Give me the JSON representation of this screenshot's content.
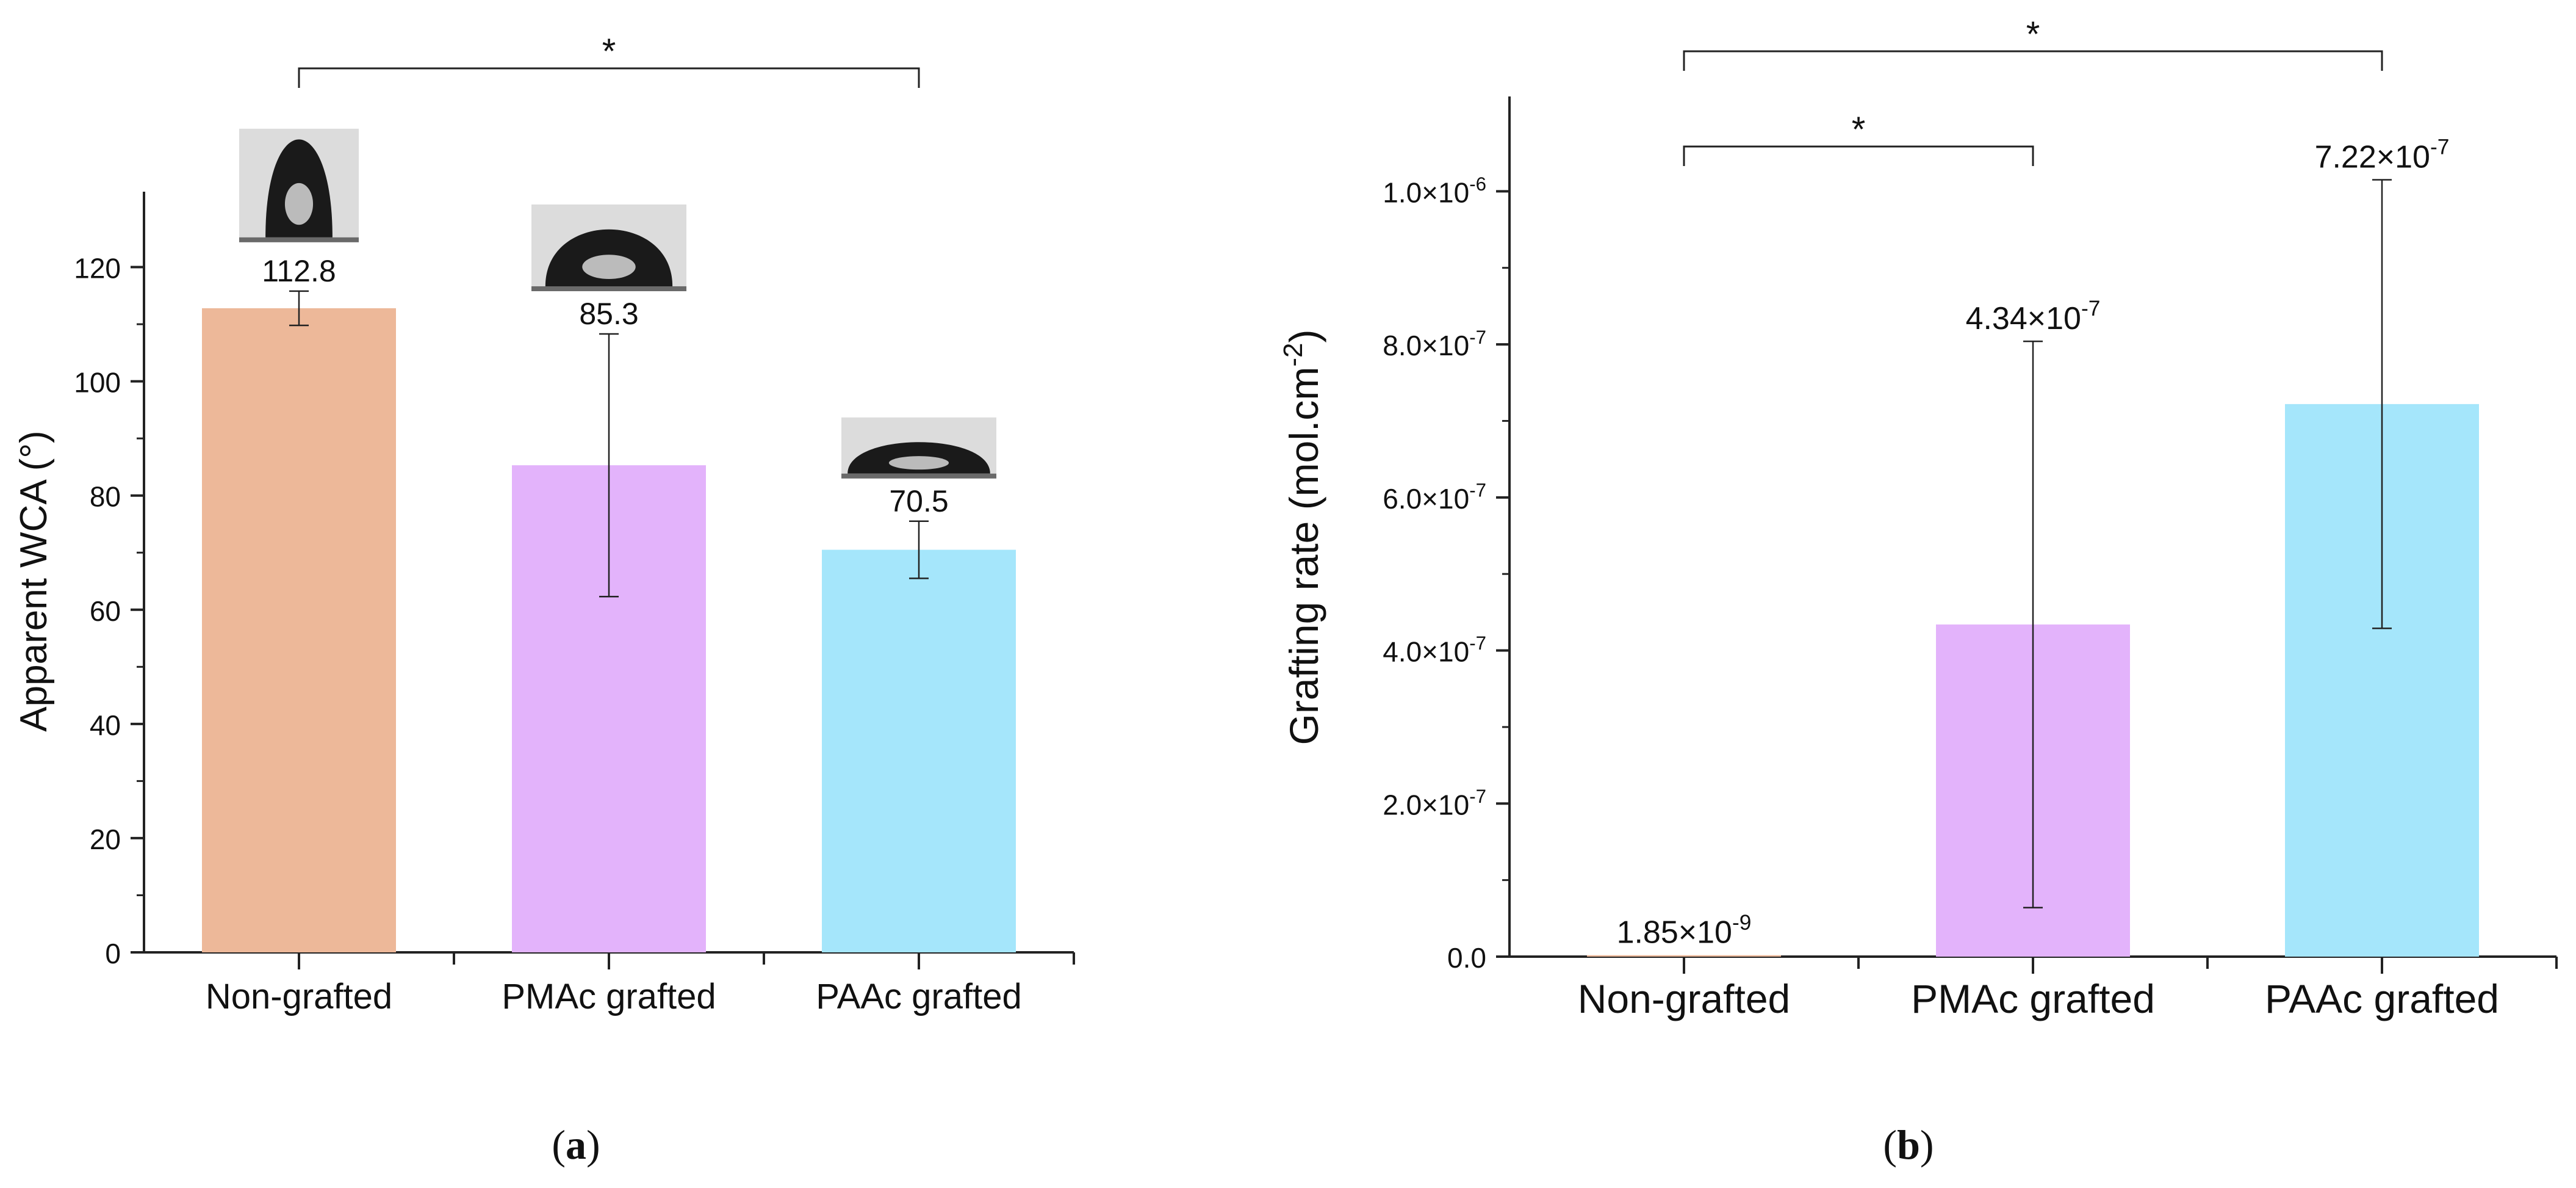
{
  "colors": {
    "non_grafted": "#EDB899",
    "pmac_grafted": "#E3B3FB",
    "paac_grafted": "#A5E6FB",
    "axis": "#222222",
    "droplet_bg": "#dcdcdc",
    "droplet": "#1a1a1a"
  },
  "chart_data": [
    {
      "type": "bar",
      "panel_label": "a",
      "categories": [
        "Non-grafted",
        "PMAc grafted",
        "PAAc grafted"
      ],
      "values": [
        112.8,
        85.3,
        70.5
      ],
      "error": [
        3,
        23,
        5
      ],
      "data_labels": [
        "112.8",
        "85.3",
        "70.5"
      ],
      "ylabel": "Apparent WCA (°)",
      "ylim": [
        0,
        130
      ],
      "yticks": [
        0,
        20,
        40,
        60,
        80,
        100,
        120
      ],
      "ytick_labels": [
        "0",
        "20",
        "40",
        "60",
        "80",
        "100",
        "120"
      ],
      "significance": [
        {
          "from": 0,
          "to": 2,
          "label": "*"
        }
      ],
      "droplet_images": [
        {
          "category": "Non-grafted",
          "icon": "droplet-image"
        },
        {
          "category": "PMAc grafted",
          "icon": "droplet-image"
        },
        {
          "category": "PAAc grafted",
          "icon": "droplet-image"
        }
      ]
    },
    {
      "type": "bar",
      "panel_label": "b",
      "categories": [
        "Non-grafted",
        "PMAc grafted",
        "PAAc grafted"
      ],
      "values": [
        1.85e-09,
        4.34e-07,
        7.22e-07
      ],
      "error": [
        0,
        3.7e-07,
        2.93e-07
      ],
      "data_labels": [
        {
          "mantissa": "1.85×10",
          "exp": "-9"
        },
        {
          "mantissa": "4.34×10",
          "exp": "-7"
        },
        {
          "mantissa": "7.22×10",
          "exp": "-7"
        }
      ],
      "ylabel": {
        "text": "Grafting rate (mol.cm",
        "sup": "-2",
        "tail": ")"
      },
      "ylim": [
        0,
        1.1e-06
      ],
      "yticks": [
        0,
        2e-07,
        4e-07,
        6e-07,
        8e-07,
        1e-06
      ],
      "ytick_labels": [
        {
          "mantissa": "0.0",
          "exp": ""
        },
        {
          "mantissa": "2.0×10",
          "exp": "-7"
        },
        {
          "mantissa": "4.0×10",
          "exp": "-7"
        },
        {
          "mantissa": "6.0×10",
          "exp": "-7"
        },
        {
          "mantissa": "8.0×10",
          "exp": "-7"
        },
        {
          "mantissa": "1.0×10",
          "exp": "-6"
        }
      ],
      "significance": [
        {
          "from": 0,
          "to": 2,
          "label": "*"
        },
        {
          "from": 0,
          "to": 1,
          "label": "*"
        }
      ]
    }
  ]
}
